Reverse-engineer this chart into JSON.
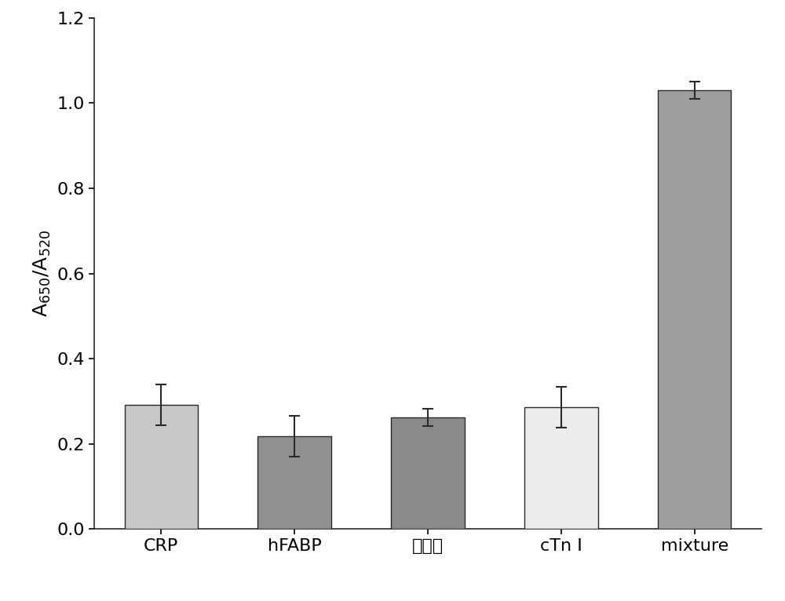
{
  "categories": [
    "CRP",
    "hFABP",
    "降钒素",
    "cTn I",
    "mixture"
  ],
  "values": [
    0.292,
    0.217,
    0.262,
    0.285,
    1.03
  ],
  "errors": [
    0.048,
    0.048,
    0.02,
    0.048,
    0.02
  ],
  "bar_colors": [
    "#c8c8c8",
    "#909090",
    "#8a8a8a",
    "#ececec",
    "#9e9e9e"
  ],
  "bar_edgecolors": [
    "#2a2a2a",
    "#2a2a2a",
    "#2a2a2a",
    "#2a2a2a",
    "#2a2a2a"
  ],
  "ylabel": "A$_{650}$/A$_{520}$",
  "ylim": [
    0.0,
    1.2
  ],
  "yticks": [
    0.0,
    0.2,
    0.4,
    0.6,
    0.8,
    1.0,
    1.2
  ],
  "ytick_labels": [
    "0.0",
    "0.2",
    "0.4",
    "0.6",
    "0.8",
    "1.0",
    "1.2"
  ],
  "background_color": "#ffffff",
  "bar_width": 0.55,
  "figsize": [
    10.0,
    7.66
  ],
  "dpi": 100,
  "ecolor": "#2a2a2a",
  "capsize": 5,
  "elinewidth": 1.5,
  "tick_fontsize": 16,
  "label_fontsize": 18
}
